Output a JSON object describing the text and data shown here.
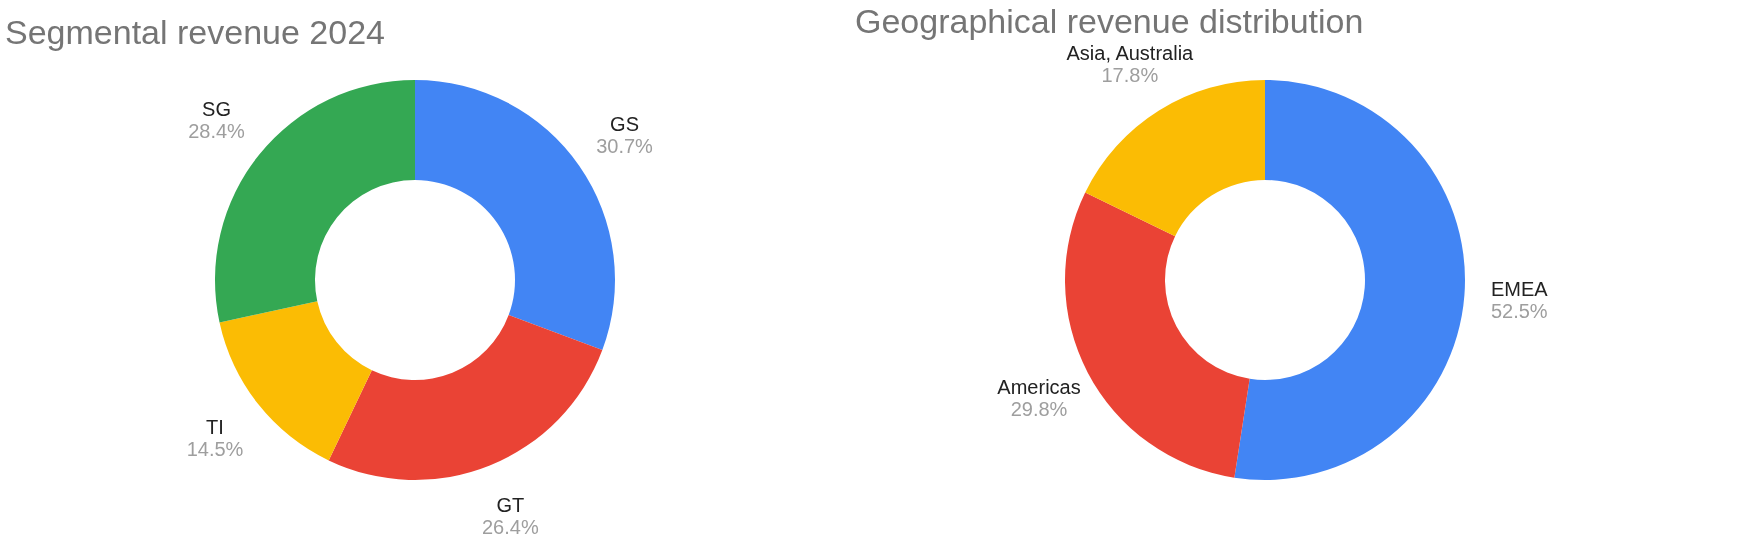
{
  "chart_data": [
    {
      "type": "donut",
      "title": "Segmental revenue 2024",
      "categories": [
        "GS",
        "GT",
        "TI",
        "SG"
      ],
      "values": [
        30.7,
        26.4,
        14.5,
        28.4
      ],
      "colors": [
        "#4285f4",
        "#ea4335",
        "#fbbc04",
        "#34a853"
      ],
      "value_labels": [
        "30.7%",
        "26.4%",
        "14.5%",
        "28.4%"
      ],
      "legend": false
    },
    {
      "type": "donut",
      "title": "Geographical revenue distribution",
      "categories": [
        "EMEA",
        "Americas",
        "Asia, Australia"
      ],
      "values": [
        52.5,
        29.8,
        17.8
      ],
      "colors": [
        "#4285f4",
        "#ea4335",
        "#fbbc04"
      ],
      "value_labels": [
        "52.5%",
        "29.8%",
        "17.8%"
      ],
      "legend": false
    }
  ]
}
